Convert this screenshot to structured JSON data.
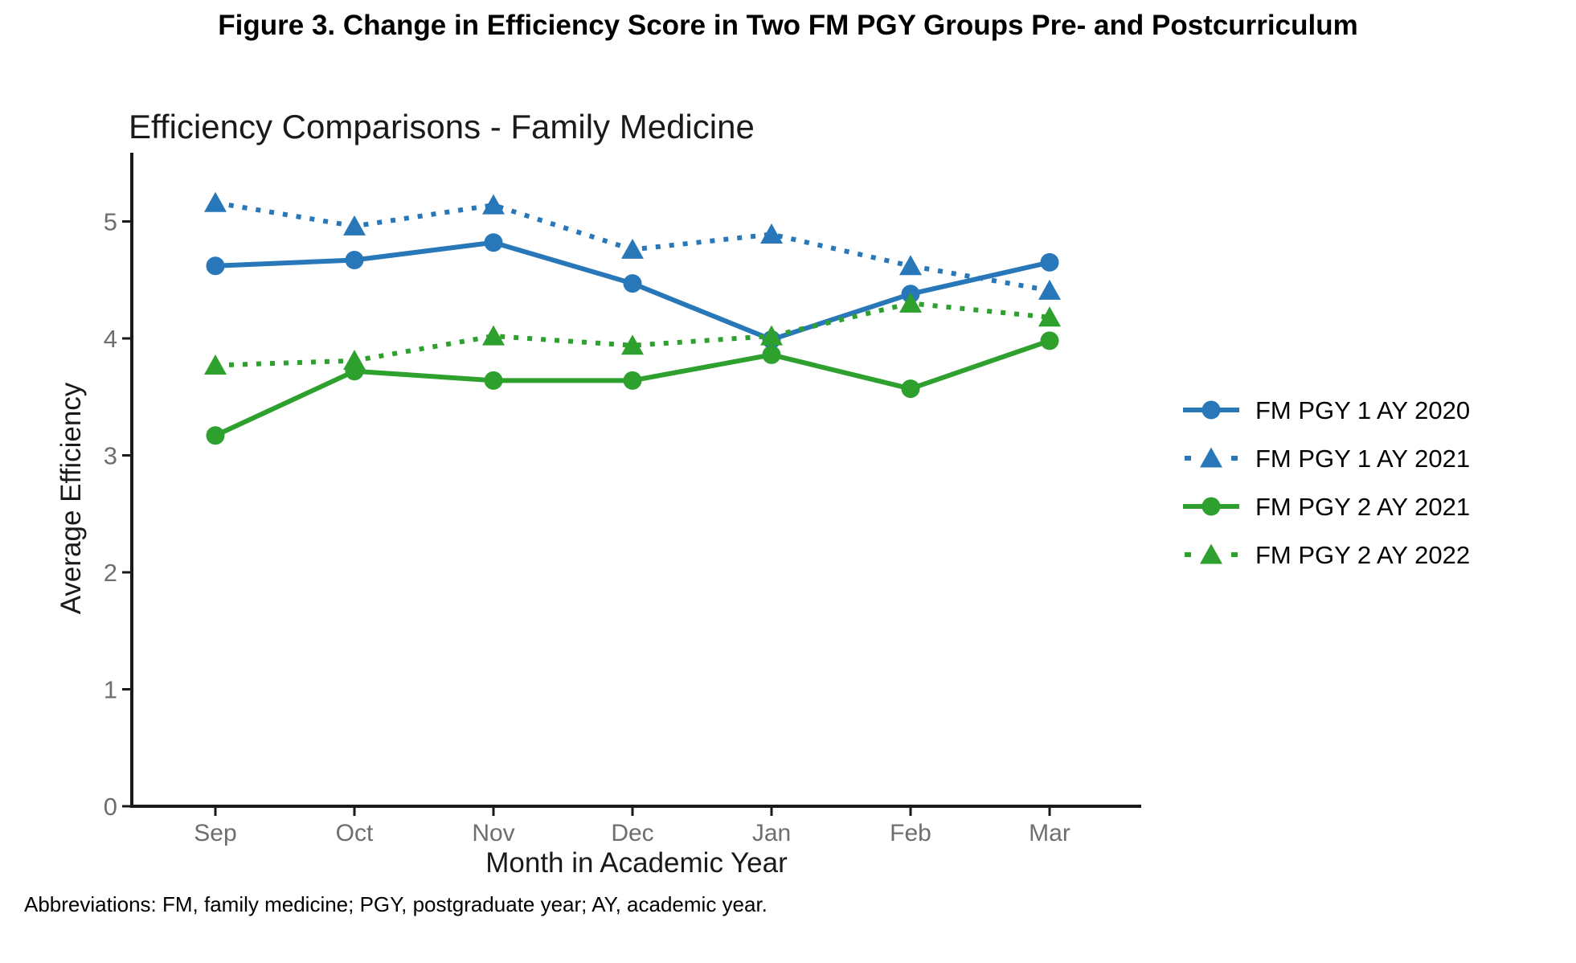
{
  "figure": {
    "title": "Figure 3. Change in Efficiency Score in Two FM PGY Groups Pre- and Postcurriculum",
    "footnote": "Abbreviations: FM, family medicine; PGY, postgraduate year; AY, academic year."
  },
  "chart_data": {
    "type": "line",
    "title": "Efficiency Comparisons - Family Medicine",
    "xlabel": "Month in Academic Year",
    "ylabel": "Average Efficiency",
    "categories": [
      "Sep",
      "Oct",
      "Nov",
      "Dec",
      "Jan",
      "Feb",
      "Mar"
    ],
    "yticks": [
      0,
      1,
      2,
      3,
      4,
      5
    ],
    "ylim": [
      0,
      5.59
    ],
    "grid": false,
    "legend_position": "right",
    "colors": {
      "blue": "#2878b9",
      "green": "#2da02d",
      "axis": "#1a1a1a",
      "tick_label": "#6e6e6e",
      "title_text": "#1a1a1a"
    },
    "series": [
      {
        "name": "FM PGY 1 AY 2020",
        "color_key": "blue",
        "line_style": "solid",
        "marker": "circle",
        "values": [
          4.62,
          4.67,
          4.82,
          4.47,
          3.99,
          4.38,
          4.65
        ]
      },
      {
        "name": "FM PGY 1 AY 2021",
        "color_key": "blue",
        "line_style": "dotted",
        "marker": "triangle",
        "values": [
          5.16,
          4.96,
          5.14,
          4.76,
          4.89,
          4.62,
          4.41
        ]
      },
      {
        "name": "FM PGY 2 AY 2021",
        "color_key": "green",
        "line_style": "solid",
        "marker": "circle",
        "values": [
          3.17,
          3.72,
          3.64,
          3.64,
          3.86,
          3.57,
          3.98
        ]
      },
      {
        "name": "FM PGY 2 AY 2022",
        "color_key": "green",
        "line_style": "dotted",
        "marker": "triangle",
        "values": [
          3.77,
          3.81,
          4.02,
          3.94,
          4.02,
          4.3,
          4.18
        ]
      }
    ]
  }
}
